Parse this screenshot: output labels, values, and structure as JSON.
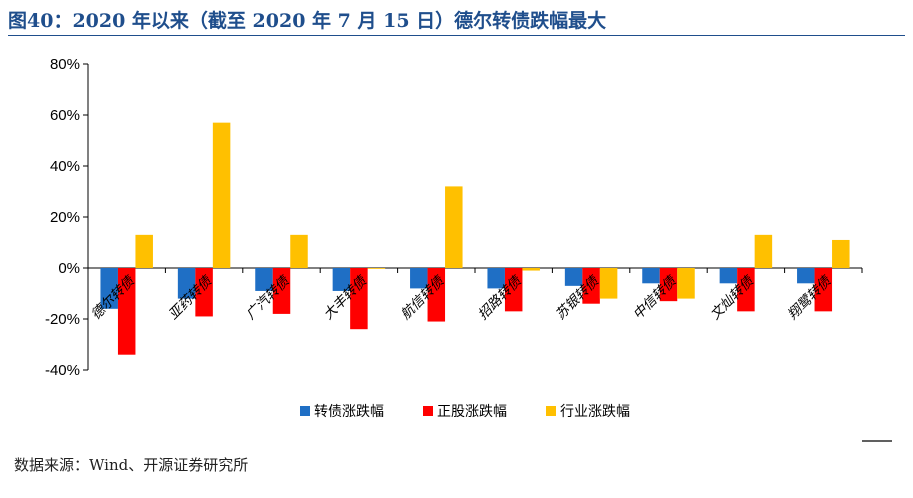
{
  "title": "图40：2020 年以来（截至 2020 年 7 月 15 日）德尔转债跌幅最大",
  "source": "数据来源：Wind、开源证券研究所",
  "chart_data": {
    "type": "bar",
    "categories": [
      "德尔转债",
      "亚药转债",
      "广汽转债",
      "大丰转债",
      "航信转债",
      "招路转债",
      "苏银转债",
      "中信转债",
      "文灿转债",
      "翔鹭转债"
    ],
    "series": [
      {
        "name": "转债涨跌幅",
        "color": "#1f6fc5",
        "values": [
          -16,
          -12,
          -9,
          -9,
          -8,
          -8,
          -7,
          -6,
          -6,
          -6
        ]
      },
      {
        "name": "正股涨跌幅",
        "color": "#ff0000",
        "values": [
          -34,
          -19,
          -18,
          -24,
          -21,
          -17,
          -14,
          -13,
          -17,
          -17
        ]
      },
      {
        "name": "行业涨跌幅",
        "color": "#ffc000",
        "values": [
          13,
          57,
          13,
          0,
          32,
          -1,
          -12,
          -12,
          13,
          11
        ]
      }
    ],
    "ylim": [
      -40,
      80
    ],
    "yticks": [
      -40,
      -20,
      0,
      20,
      40,
      60,
      80
    ],
    "ytick_labels": [
      "-40%",
      "-20%",
      "0%",
      "20%",
      "40%",
      "60%",
      "80%"
    ],
    "legend_position": "bottom",
    "grid": false
  }
}
